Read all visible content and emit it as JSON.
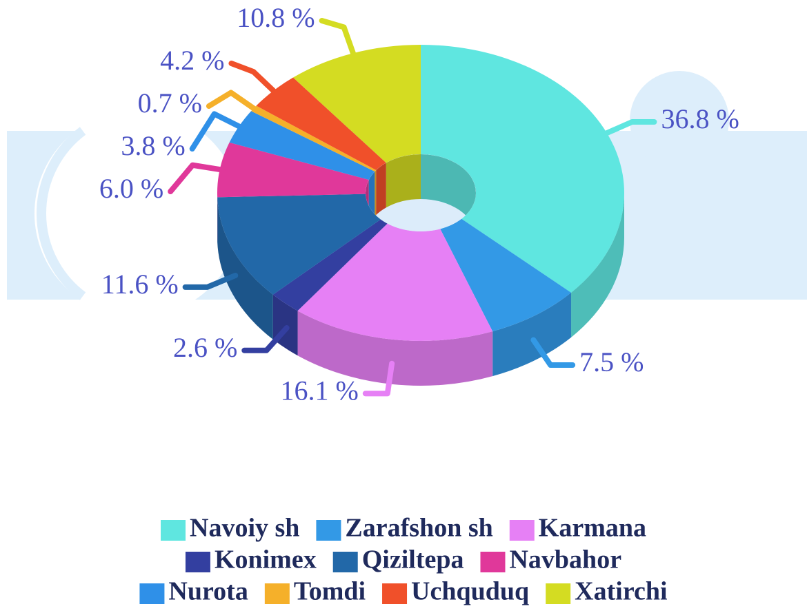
{
  "chart_data": {
    "type": "pie",
    "donut": true,
    "categories": [
      "Navoiy sh",
      "Zarafshon sh",
      "Karmana",
      "Konimex",
      "Qiziltepa",
      "Navbahor",
      "Nurota",
      "Tomdi",
      "Uchquduq",
      "Xatirchi"
    ],
    "values": [
      36.8,
      7.5,
      16.1,
      2.6,
      11.6,
      6.0,
      3.8,
      0.7,
      4.2,
      10.8
    ],
    "value_labels": [
      "36.8 %",
      "7.5 %",
      "16.1 %",
      "2.6 %",
      "11.6 %",
      "6.0 %",
      "3.8 %",
      "0.7 %",
      "4.2 %",
      "10.8 %"
    ],
    "colors": [
      "#5fe6e0",
      "#3399e6",
      "#e680f5",
      "#333fa0",
      "#2268a8",
      "#e0389a",
      "#2f90e8",
      "#f5b02a",
      "#f0502a",
      "#d4dc22"
    ]
  }
}
